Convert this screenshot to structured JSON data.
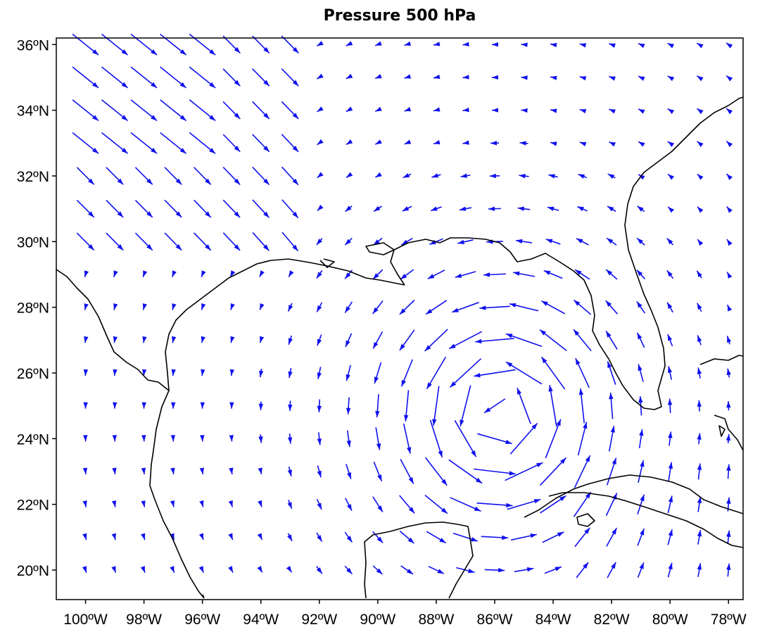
{
  "title": "Pressure 500 hPa",
  "chart_data": {
    "type": "vector_field",
    "title": "Pressure 500 hPa",
    "xlabel": "",
    "ylabel": "",
    "lon_range": [
      -101,
      -77.5
    ],
    "lat_range": [
      19.1,
      36.2
    ],
    "x_ticks": [
      -100,
      -98,
      -96,
      -94,
      -92,
      -90,
      -88,
      -86,
      -84,
      -82,
      -80,
      -78
    ],
    "x_tick_labels": [
      "100ºW",
      "98ºW",
      "96ºW",
      "94ºW",
      "92ºW",
      "90ºW",
      "88ºW",
      "86ºW",
      "84ºW",
      "82ºW",
      "80ºW",
      "78ºW"
    ],
    "y_ticks": [
      20,
      22,
      24,
      26,
      28,
      30,
      32,
      34,
      36
    ],
    "y_tick_labels": [
      "20ºN",
      "22ºN",
      "24ºN",
      "26ºN",
      "28ºN",
      "30ºN",
      "32ºN",
      "34ºN",
      "36ºN"
    ],
    "arrow_color": "#1010ee",
    "coast_color": "#000000",
    "vortex_center": {
      "lon": -85.8,
      "lat": 24.7
    },
    "grid": false
  }
}
